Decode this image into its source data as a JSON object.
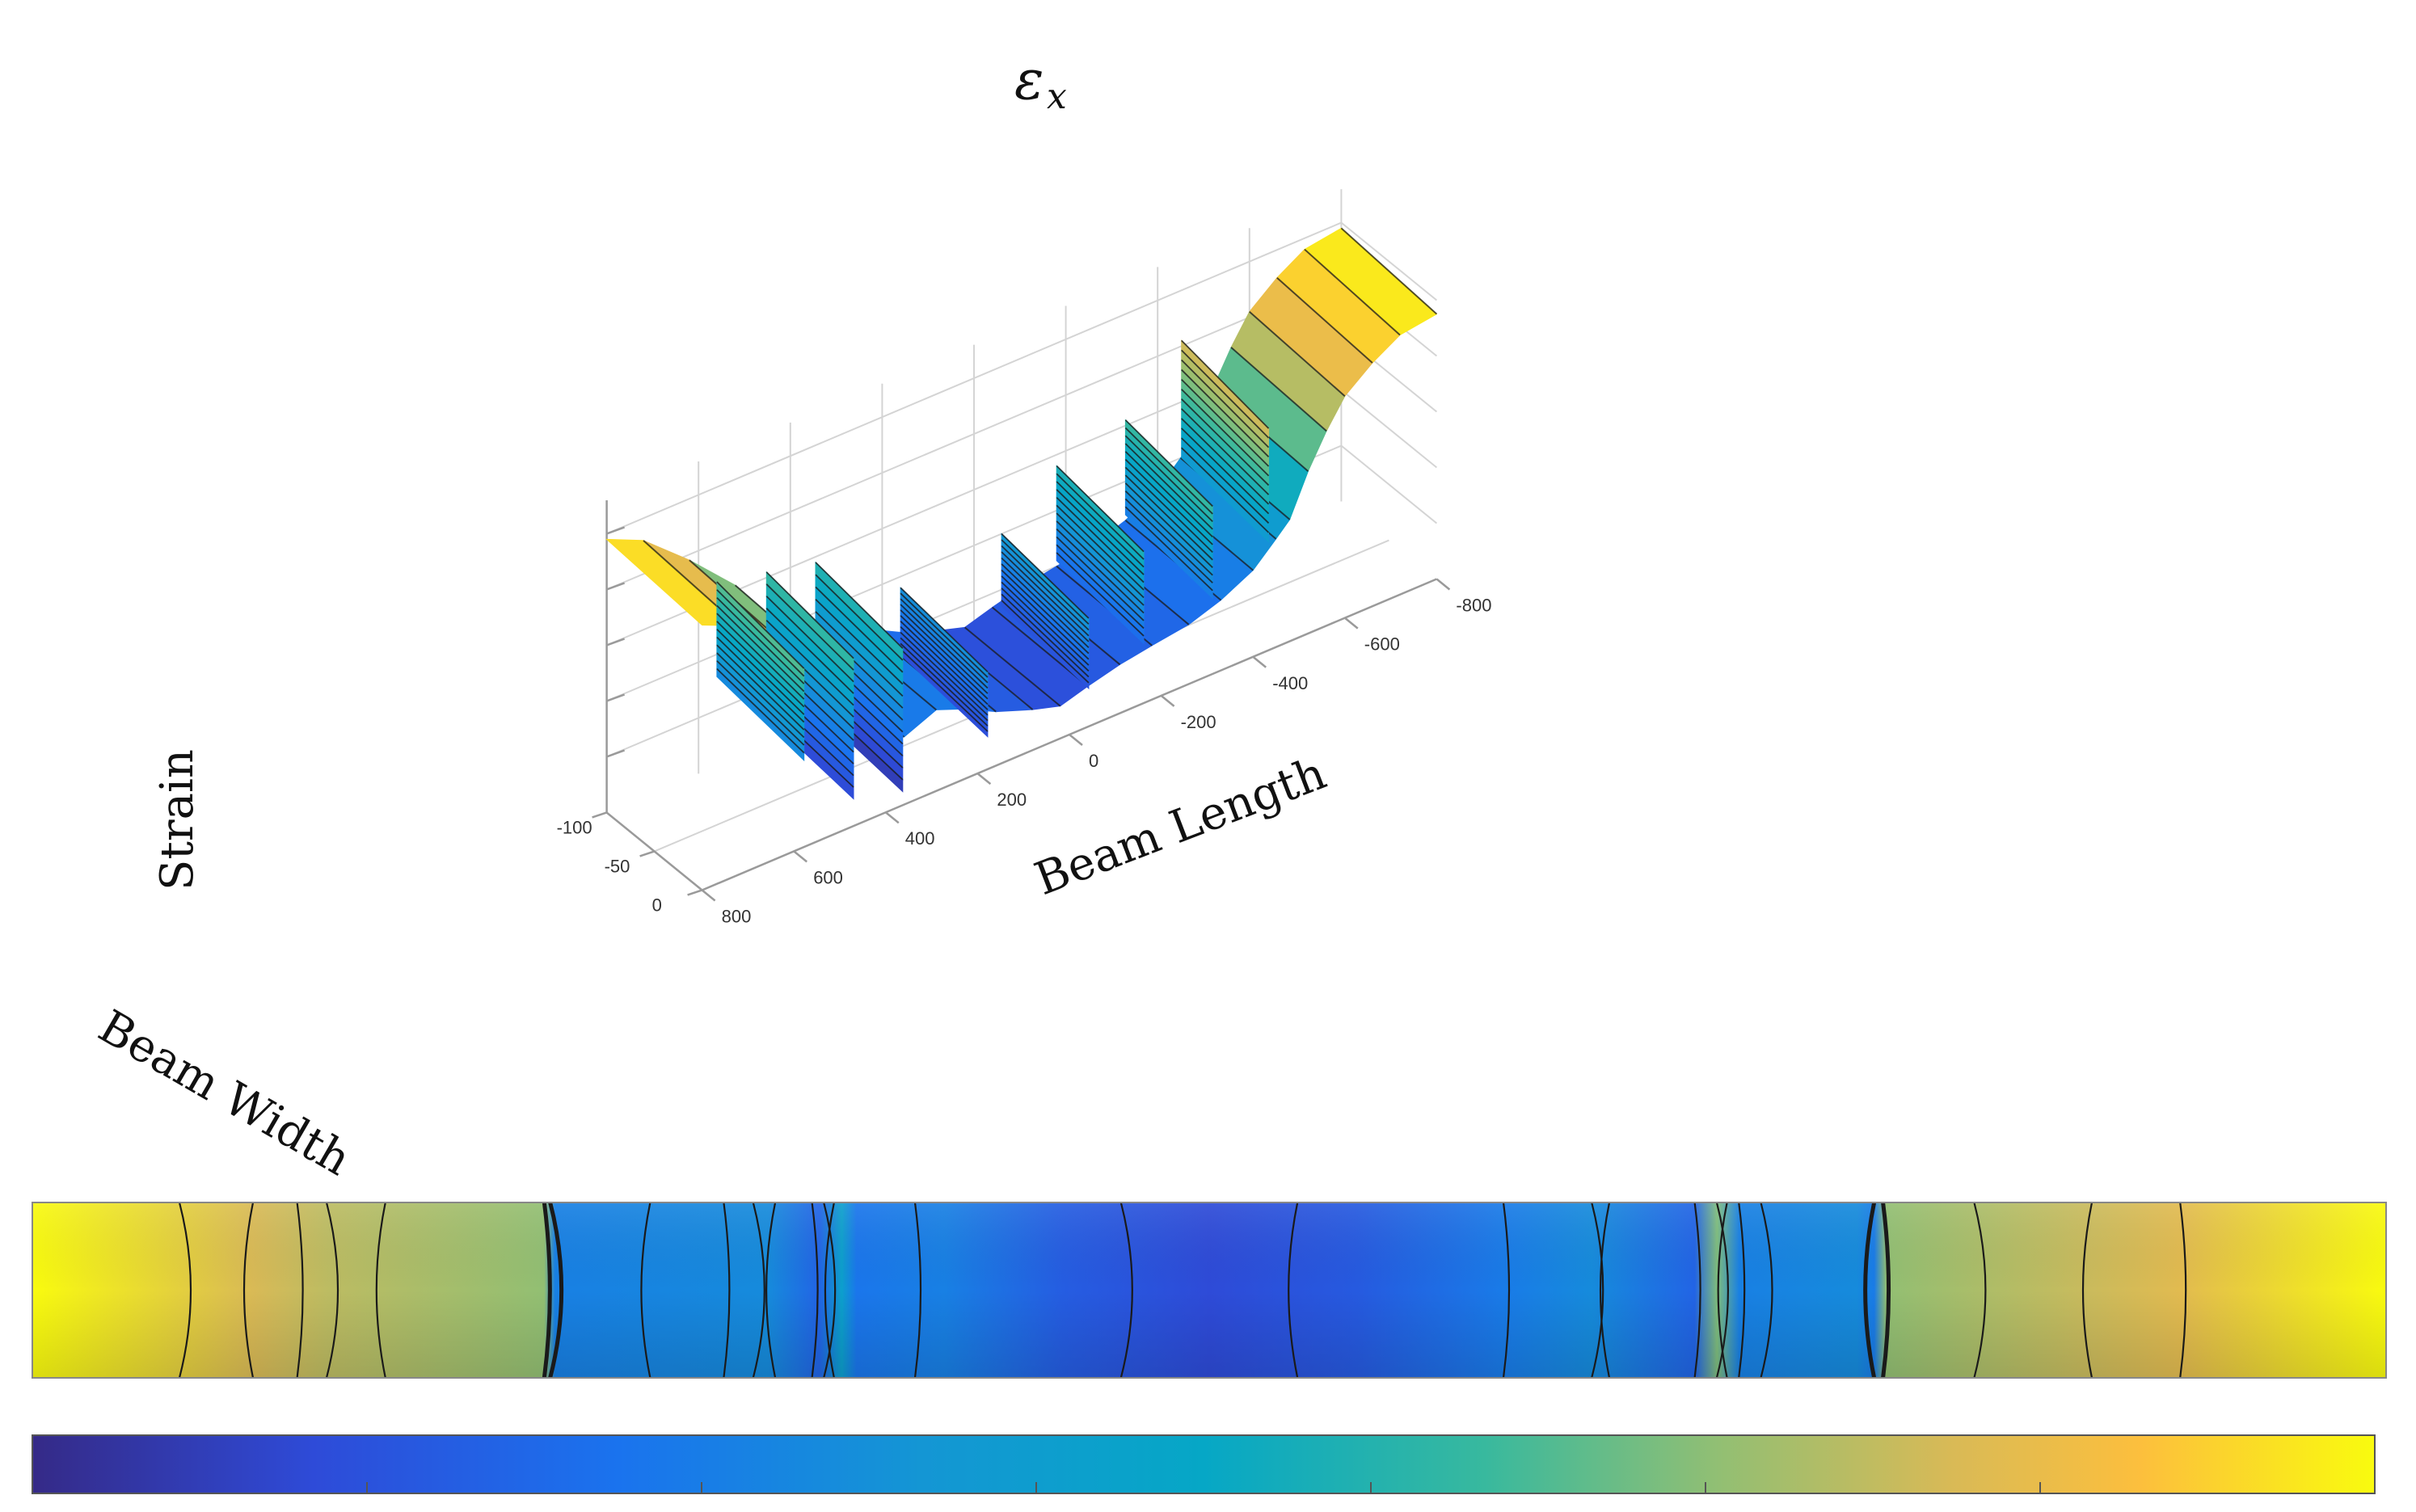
{
  "chart_data": [
    {
      "type": "surface",
      "title_symbol": "ε",
      "title_subscript": "x",
      "xlabel": "Beam Length",
      "ylabel": "Beam Width",
      "zlabel": "Strain",
      "x_ticks": [
        "-800",
        "-600",
        "-400",
        "-200",
        "0",
        "200",
        "400",
        "600",
        "800"
      ],
      "y_ticks": [
        "-100",
        "-50",
        "0"
      ],
      "xlim": [
        -800,
        800
      ],
      "ylim": [
        -100,
        0
      ],
      "grid": true,
      "colormap": "parula",
      "profile_x": [
        -800,
        -720,
        -660,
        -600,
        -560,
        -520,
        -480,
        -450,
        -400,
        -330,
        -260,
        -180,
        -110,
        -40,
        20,
        80,
        160,
        230,
        290,
        360,
        420,
        520,
        620,
        720,
        800
      ],
      "profile_strain": [
        0.98,
        0.96,
        0.9,
        0.82,
        0.72,
        0.6,
        0.45,
        0.4,
        0.32,
        0.26,
        0.22,
        0.2,
        0.18,
        0.15,
        0.12,
        0.15,
        0.2,
        0.26,
        0.3,
        0.25,
        0.35,
        0.62,
        0.78,
        0.92,
        0.98
      ]
    },
    {
      "type": "heatmap",
      "xlim": [
        -800,
        800
      ],
      "ylim": [
        -100,
        0
      ],
      "colormap": "parula",
      "bands": [
        {
          "x": -800,
          "v": 1.0
        },
        {
          "x": -650,
          "v": 0.82
        },
        {
          "x": -600,
          "v": 0.78
        },
        {
          "x": -452,
          "v": 0.72
        },
        {
          "x": -445,
          "v": 0.3
        },
        {
          "x": -300,
          "v": 0.34
        },
        {
          "x": -265,
          "v": 0.2
        },
        {
          "x": -250,
          "v": 0.45
        },
        {
          "x": -240,
          "v": 0.26
        },
        {
          "x": -180,
          "v": 0.3
        },
        {
          "x": -100,
          "v": 0.18
        },
        {
          "x": 0,
          "v": 0.12
        },
        {
          "x": 100,
          "v": 0.17
        },
        {
          "x": 200,
          "v": 0.28
        },
        {
          "x": 260,
          "v": 0.34
        },
        {
          "x": 330,
          "v": 0.2
        },
        {
          "x": 345,
          "v": 0.7
        },
        {
          "x": 360,
          "v": 0.3
        },
        {
          "x": 440,
          "v": 0.34
        },
        {
          "x": 452,
          "v": 0.28
        },
        {
          "x": 460,
          "v": 0.72
        },
        {
          "x": 600,
          "v": 0.8
        },
        {
          "x": 660,
          "v": 0.84
        },
        {
          "x": 800,
          "v": 1.0
        }
      ],
      "colorbar": {
        "ticks": 6,
        "tick_labels": []
      }
    }
  ]
}
